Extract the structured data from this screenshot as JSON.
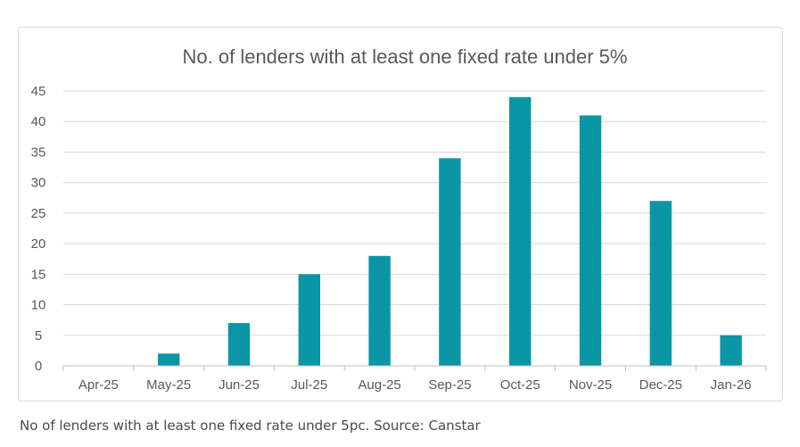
{
  "chart_data": {
    "type": "bar",
    "title": "No. of lenders with at least one fixed rate under 5%",
    "xlabel": "",
    "ylabel": "",
    "categories": [
      "Apr-25",
      "May-25",
      "Jun-25",
      "Jul-25",
      "Aug-25",
      "Sep-25",
      "Oct-25",
      "Nov-25",
      "Dec-25",
      "Jan-26"
    ],
    "values": [
      0,
      2,
      7,
      15,
      18,
      34,
      44,
      41,
      27,
      5
    ],
    "ylim": [
      0,
      45
    ],
    "yticks": [
      0,
      5,
      10,
      15,
      20,
      25,
      30,
      35,
      40,
      45
    ],
    "grid": true,
    "legend": "none",
    "colors": {
      "bar": "#0b96a6",
      "grid": "#d9d9d9",
      "axis": "#bfbfbf",
      "text": "#595959"
    }
  },
  "caption": "No of lenders with at least one fixed rate under 5pc. Source: Canstar"
}
